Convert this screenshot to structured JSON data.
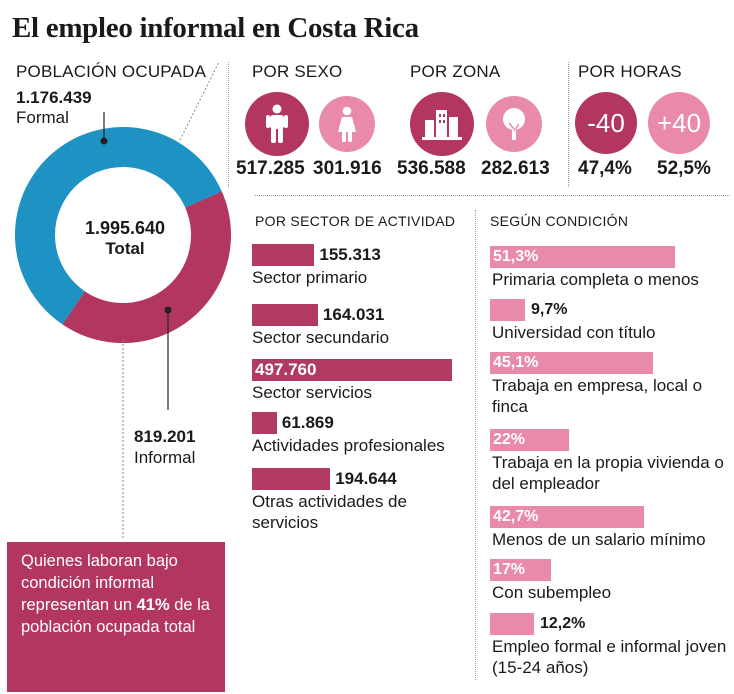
{
  "title": "El empleo informal en Costa Rica",
  "colors": {
    "informal": "#b3365f",
    "formal": "#1f92c4",
    "pink": "#e98aa8",
    "dark_pink": "#b03a62"
  },
  "poblacion": {
    "heading": "POBLACIÓN OCUPADA",
    "formal_value": "1.176.439",
    "formal_label": "Formal",
    "informal_value": "819.201",
    "informal_label": "Informal",
    "total_value": "1.995.640",
    "total_label": "Total"
  },
  "sexo": {
    "heading": "POR SEXO",
    "hombres": "517.285",
    "mujeres": "301.916"
  },
  "zona": {
    "heading": "POR ZONA",
    "urbana": "536.588",
    "rural": "282.613"
  },
  "horas": {
    "heading": "POR HORAS",
    "menos_label": "-40",
    "mas_label": "+40",
    "menos_pct": "47,4%",
    "mas_pct": "52,5%"
  },
  "callout": {
    "text_before": "Quienes laboran bajo condición informal representan un ",
    "highlight": "41%",
    "text_after": " de la población ocupada total"
  },
  "chart_data": [
    {
      "type": "pie",
      "categories": [
        "Formal",
        "Informal"
      ],
      "values": [
        1176439,
        819201
      ],
      "total": 1995640
    },
    {
      "type": "bar",
      "title": "POR SECTOR DE ACTIVIDAD",
      "categories": [
        "Sector primario",
        "Sector secundario",
        "Sector servicios",
        "Actividades profesionales",
        "Otras actividades de servicios"
      ],
      "values": [
        155313,
        164031,
        497760,
        61869,
        194644
      ],
      "value_labels": [
        "155.313",
        "164.031",
        "497.760",
        "61.869",
        "194.644"
      ]
    },
    {
      "type": "bar",
      "title": "SEGÚN CONDICIÓN",
      "categories": [
        "Primaria completa o menos",
        "Universidad con título",
        "Trabaja en empresa, local o finca",
        "Trabaja en la propia vivienda o del empleador",
        "Menos de un salario mínimo",
        "Con subempleo",
        "Empleo formal e informal joven (15-24 años)"
      ],
      "values": [
        51.3,
        9.7,
        45.1,
        22,
        42.7,
        17,
        12.2
      ],
      "value_labels": [
        "51,3%",
        "9,7%",
        "45,1%",
        "22%",
        "42,7%",
        "17%",
        "12,2%"
      ]
    }
  ]
}
